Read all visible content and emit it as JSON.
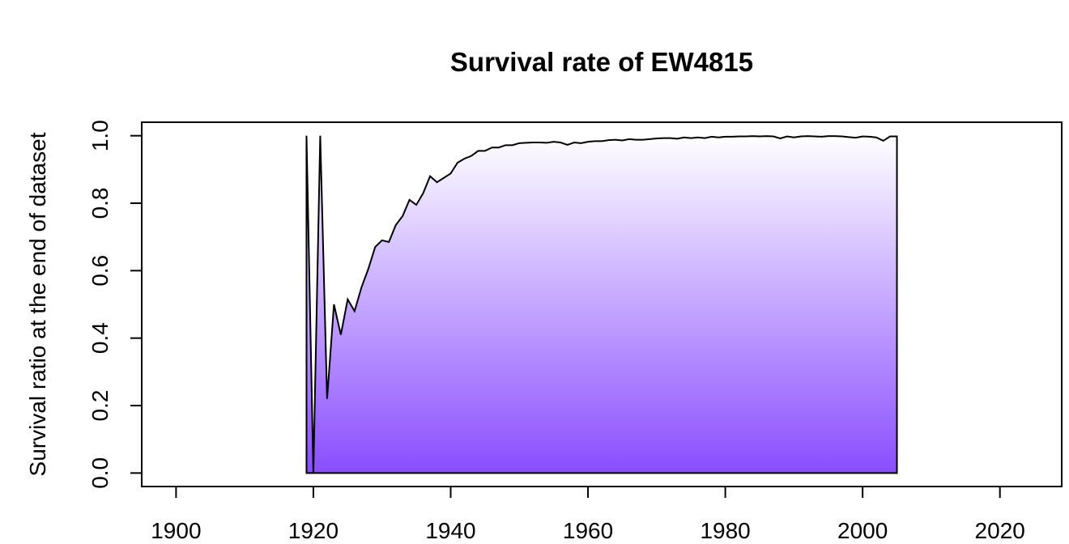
{
  "chart_data": {
    "type": "area",
    "title": "Survival rate of EW4815",
    "xlabel": "",
    "ylabel": "Survival ratio at the end of dataset",
    "xlim": [
      1895,
      2029
    ],
    "ylim": [
      -0.04,
      1.04
    ],
    "xticks": [
      1900,
      1920,
      1940,
      1960,
      1980,
      2000,
      2020
    ],
    "yticks": [
      0.0,
      0.2,
      0.4,
      0.6,
      0.8,
      1.0
    ],
    "xtick_labels": [
      "1900",
      "1920",
      "1940",
      "1960",
      "1980",
      "2000",
      "2020"
    ],
    "ytick_labels": [
      "0.0",
      "0.2",
      "0.4",
      "0.6",
      "0.8",
      "1.0"
    ],
    "grid": false,
    "legend": "none",
    "colors": {
      "fill_top": "#ffffff",
      "fill_bottom": "#8a4dff",
      "line": "#000000"
    },
    "series": [
      {
        "x": [
          1919,
          1920,
          1921,
          1922,
          1923,
          1924,
          1925,
          1926,
          1927,
          1928,
          1929,
          1930,
          1931,
          1932,
          1933,
          1934,
          1935,
          1936,
          1937,
          1938,
          1939,
          1940,
          1941,
          1942,
          1943,
          1944,
          1945,
          1946,
          1947,
          1948,
          1949,
          1950,
          1951,
          1952,
          1953,
          1954,
          1955,
          1956,
          1957,
          1958,
          1959,
          1960,
          1961,
          1962,
          1963,
          1964,
          1965,
          1966,
          1967,
          1968,
          1969,
          1970,
          1971,
          1972,
          1973,
          1974,
          1975,
          1976,
          1977,
          1978,
          1979,
          1980,
          1981,
          1982,
          1983,
          1984,
          1985,
          1986,
          1987,
          1988,
          1989,
          1990,
          1991,
          1992,
          1993,
          1994,
          1995,
          1996,
          1997,
          1998,
          1999,
          2000,
          2001,
          2002,
          2003,
          2004,
          2005
        ],
        "values": [
          1.0,
          0.0,
          1.0,
          0.22,
          0.5,
          0.41,
          0.515,
          0.48,
          0.55,
          0.605,
          0.67,
          0.69,
          0.685,
          0.735,
          0.762,
          0.81,
          0.795,
          0.83,
          0.88,
          0.862,
          0.875,
          0.888,
          0.92,
          0.932,
          0.94,
          0.955,
          0.955,
          0.965,
          0.965,
          0.972,
          0.972,
          0.978,
          0.979,
          0.98,
          0.98,
          0.979,
          0.982,
          0.98,
          0.973,
          0.98,
          0.978,
          0.982,
          0.984,
          0.984,
          0.987,
          0.988,
          0.986,
          0.99,
          0.988,
          0.988,
          0.99,
          0.992,
          0.993,
          0.993,
          0.991,
          0.995,
          0.993,
          0.995,
          0.993,
          0.997,
          0.995,
          0.997,
          0.997,
          0.998,
          0.998,
          0.999,
          0.998,
          0.999,
          0.998,
          0.992,
          0.998,
          0.995,
          0.998,
          0.999,
          0.998,
          0.997,
          0.999,
          0.999,
          0.998,
          0.996,
          0.994,
          0.998,
          0.997,
          0.995,
          0.985,
          0.998,
          0.998
        ]
      }
    ]
  }
}
